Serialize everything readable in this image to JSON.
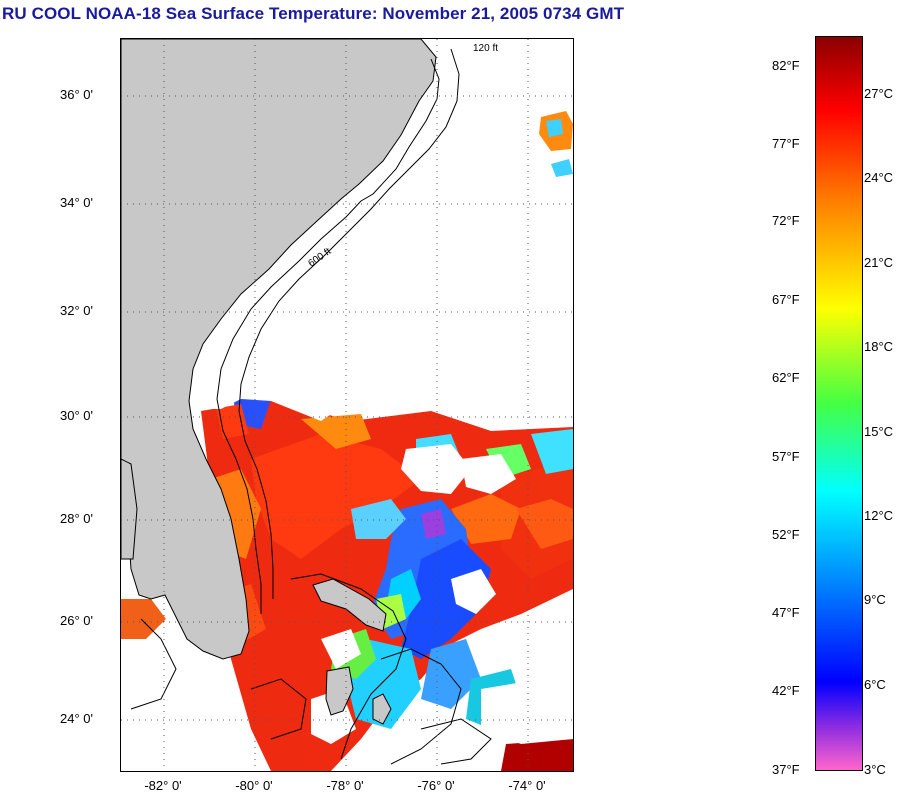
{
  "title": "RU COOL  NOAA-18  Sea Surface Temperature:  November 21, 2005 0734 GMT",
  "map": {
    "latitude_labels": [
      "36° 0'",
      "34° 0'",
      "32° 0'",
      "30° 0'",
      "28° 0'",
      "26° 0'",
      "24° 0'"
    ],
    "longitude_labels": [
      "-82° 0'",
      "-80° 0'",
      "-78° 0'",
      "-76° 0'",
      "-74° 0'"
    ],
    "contour_labels": [
      "120 ft",
      "600 ft"
    ],
    "colors": {
      "land": "#c8c8c8",
      "cloud_mask": "#ffffff"
    }
  },
  "colorbar": {
    "fahrenheit_labels": [
      "82°F",
      "77°F",
      "72°F",
      "67°F",
      "62°F",
      "57°F",
      "52°F",
      "47°F",
      "42°F",
      "37°F"
    ],
    "celsius_labels": [
      "27°C",
      "24°C",
      "21°C",
      "18°C",
      "15°C",
      "12°C",
      "9°C",
      "6°C",
      "3°C"
    ],
    "gradient_colors": [
      "#8b0000",
      "#ff0000",
      "#ff7a00",
      "#ffff00",
      "#44ff44",
      "#00ffff",
      "#0080ff",
      "#0000ff",
      "#8a2be2",
      "#ff66cc"
    ]
  }
}
